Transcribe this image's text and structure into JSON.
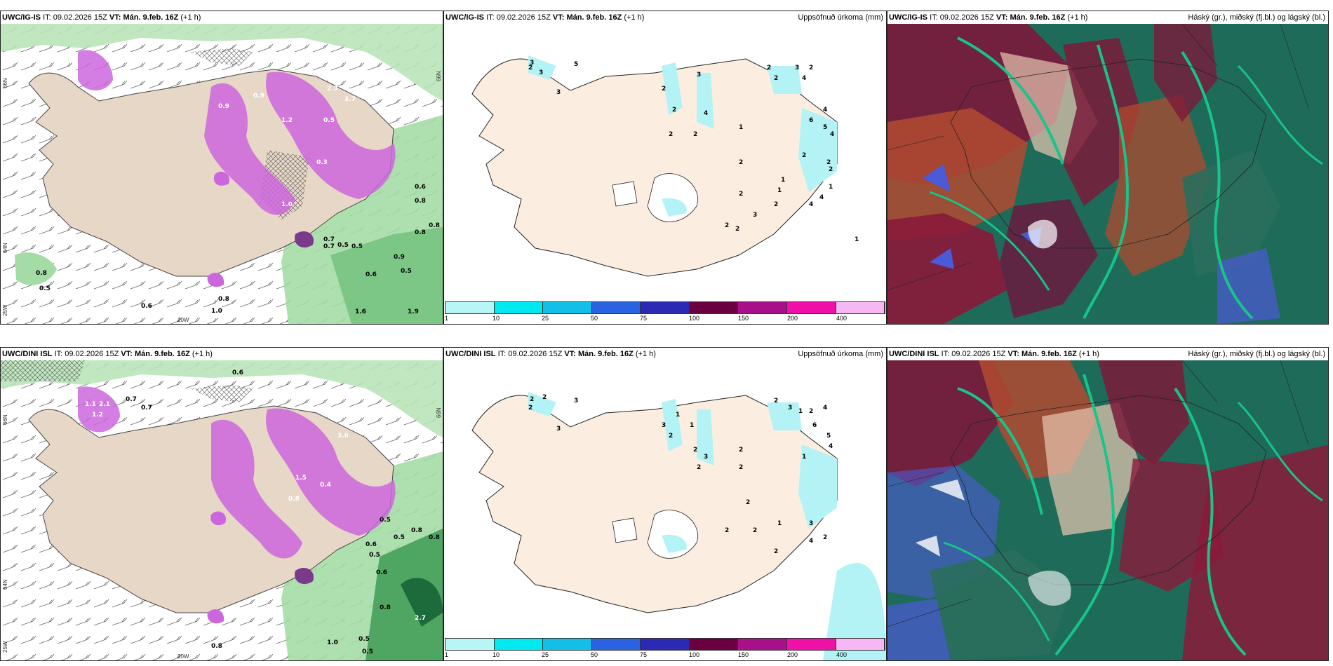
{
  "colors": {
    "land": "#e6d7c7",
    "land_light": "#fbeee0",
    "precip_green": "#9cd79c",
    "precip_green_dark": "#3e9c55",
    "snow_purple": "#cc66dd",
    "snow_purple_dark": "#7a3a8c",
    "cyan_light": "#b3f3f5",
    "cloud_teal": "#1d8a64",
    "cloud_green": "#17c48a",
    "cloud_maroon": "#7a1a3a",
    "cloud_rust": "#b04a30",
    "cloud_blue": "#4b5ad6"
  },
  "panels": {
    "p1": {
      "model": "UWC/IG-IS",
      "it_label": "IT:",
      "it_value": "09.02.2026 15Z",
      "vt_label": "VT:",
      "vt_value": "Mán. 9.feb. 16Z",
      "lead": "(+1 h)",
      "coords": {
        "lat66": "66N",
        "lat64": "64N",
        "lon25": "25W",
        "lon20": "20W",
        "lat66r": "66N"
      },
      "labels": [
        "0.8",
        "0.5",
        "0.6",
        "1.0",
        "0.8",
        "0.5",
        "0.7",
        "0.5",
        "0.6",
        "0.8",
        "0.9",
        "0.5",
        "1.6",
        "1.9",
        "0.6",
        "0.8",
        "0.7",
        "0.9",
        "1.2",
        "2.1",
        "3.7",
        "0.5",
        "0.3",
        "1.0",
        "2.3",
        "0.9",
        "0.8"
      ]
    },
    "p2": {
      "model": "UWC/IG-IS",
      "it_label": "IT:",
      "it_value": "09.02.2026 15Z",
      "vt_label": "VT:",
      "vt_value": "Mán. 9.feb. 16Z",
      "lead": "(+1 h)",
      "right_title": "Uppsöfnuð úrkoma (mm)",
      "labels": [
        "3",
        "3",
        "2",
        "3",
        "5",
        "2",
        "2",
        "2",
        "3",
        "4",
        "2",
        "1",
        "4",
        "6",
        "5",
        "4",
        "2",
        "2",
        "1",
        "1",
        "2",
        "2",
        "3",
        "2",
        "2",
        "4",
        "3",
        "2",
        "1",
        "2",
        "2",
        "4",
        "4",
        "2",
        "2",
        "1"
      ]
    },
    "p3": {
      "model": "UWC/IG-IS",
      "it_label": "IT:",
      "it_value": "09.02.2026 15Z",
      "vt_label": "VT:",
      "vt_value": "Mán. 9.feb. 16Z",
      "lead": "(+1 h)",
      "right_title": "Háský (gr.), miðský (fj.bl.) og lágský (bl.)"
    },
    "p4": {
      "model": "UWC/DINI ISL",
      "it_label": "IT:",
      "it_value": "09.02.2026 15Z",
      "vt_label": "VT:",
      "vt_value": "Mán. 9.feb. 16Z",
      "lead": "(+1 h)",
      "coords": {
        "lat66": "66N",
        "lat64": "64N",
        "lon25": "25W",
        "lon20": "20W",
        "lat66r": "66N"
      },
      "labels": [
        "0.6",
        "0.5",
        "0.7",
        "0.8",
        "0.6",
        "0.5",
        "0.8",
        "1.0",
        "0.5",
        "0.5",
        "2.7",
        "0.6",
        "0.8",
        "0.8",
        "2.1",
        "1.1",
        "1.2",
        "0.9",
        "3.6",
        "0.4",
        "1.5",
        "0.8",
        "0.7",
        "0.5"
      ]
    },
    "p5": {
      "model": "UWC/DINI ISL",
      "it_label": "IT:",
      "it_value": "09.02.2026 15Z",
      "vt_label": "VT:",
      "vt_value": "Mán. 9.feb. 16Z",
      "lead": "(+1 h)",
      "right_title": "Uppsöfnuð úrkoma (mm)",
      "labels": [
        "2",
        "2",
        "3",
        "2",
        "3",
        "3",
        "2",
        "1",
        "1",
        "2",
        "3",
        "2",
        "2",
        "1",
        "2",
        "2",
        "4",
        "6",
        "5",
        "4",
        "2",
        "3",
        "1",
        "2",
        "2",
        "2",
        "1",
        "3",
        "4",
        "2",
        "2"
      ]
    },
    "p6": {
      "model": "UWC/DINI ISL",
      "it_label": "IT:",
      "it_value": "09.02.2026 15Z",
      "vt_label": "VT:",
      "vt_value": "Mán. 9.feb. 16Z",
      "lead": "(+1 h)",
      "right_title": "Háský (gr.), miðský (fj.bl.) og lágský (bl.)"
    }
  },
  "legend": {
    "ticks": [
      "1",
      "10",
      "25",
      "50",
      "75",
      "100",
      "150",
      "200",
      "400"
    ],
    "colors": [
      "#b8f5f7",
      "#00e8f0",
      "#13bfe6",
      "#2a62e0",
      "#2a2ab5",
      "#6a0040",
      "#a8108a",
      "#ef10a8",
      "#f6b8f2"
    ]
  }
}
